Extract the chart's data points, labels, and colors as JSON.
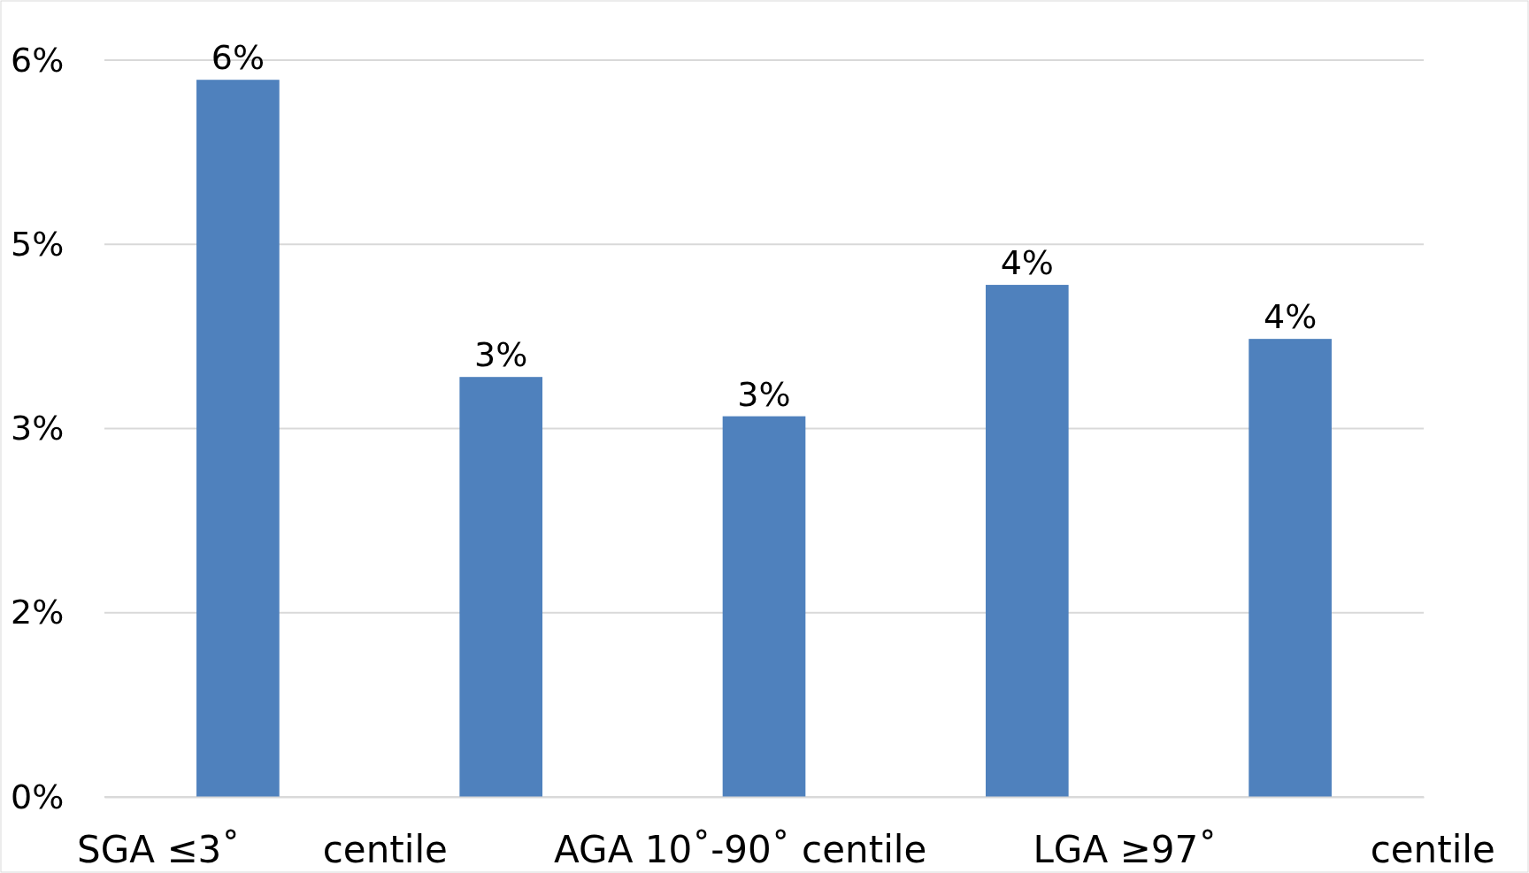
{
  "chart_data": {
    "type": "bar",
    "categories": [
      null,
      null,
      null,
      null,
      null
    ],
    "values": [
      5.84,
      3.42,
      3.1,
      4.17,
      3.73
    ],
    "value_labels": [
      "6%",
      "3%",
      "3%",
      "4%",
      "4%"
    ],
    "color": "#4f81bd",
    "xlabel": "SGA ≤3˚       centile         AGA 10˚-90˚ centile         LGA ≥97˚             centile",
    "ylim": [
      0,
      6
    ],
    "yticks": [
      {
        "value": 0,
        "label": "0%"
      },
      {
        "value": 1.5,
        "label": "2%"
      },
      {
        "value": 3,
        "label": "3%"
      },
      {
        "value": 4.5,
        "label": "5%"
      },
      {
        "value": 6,
        "label": "6%"
      }
    ],
    "grid": "y"
  }
}
